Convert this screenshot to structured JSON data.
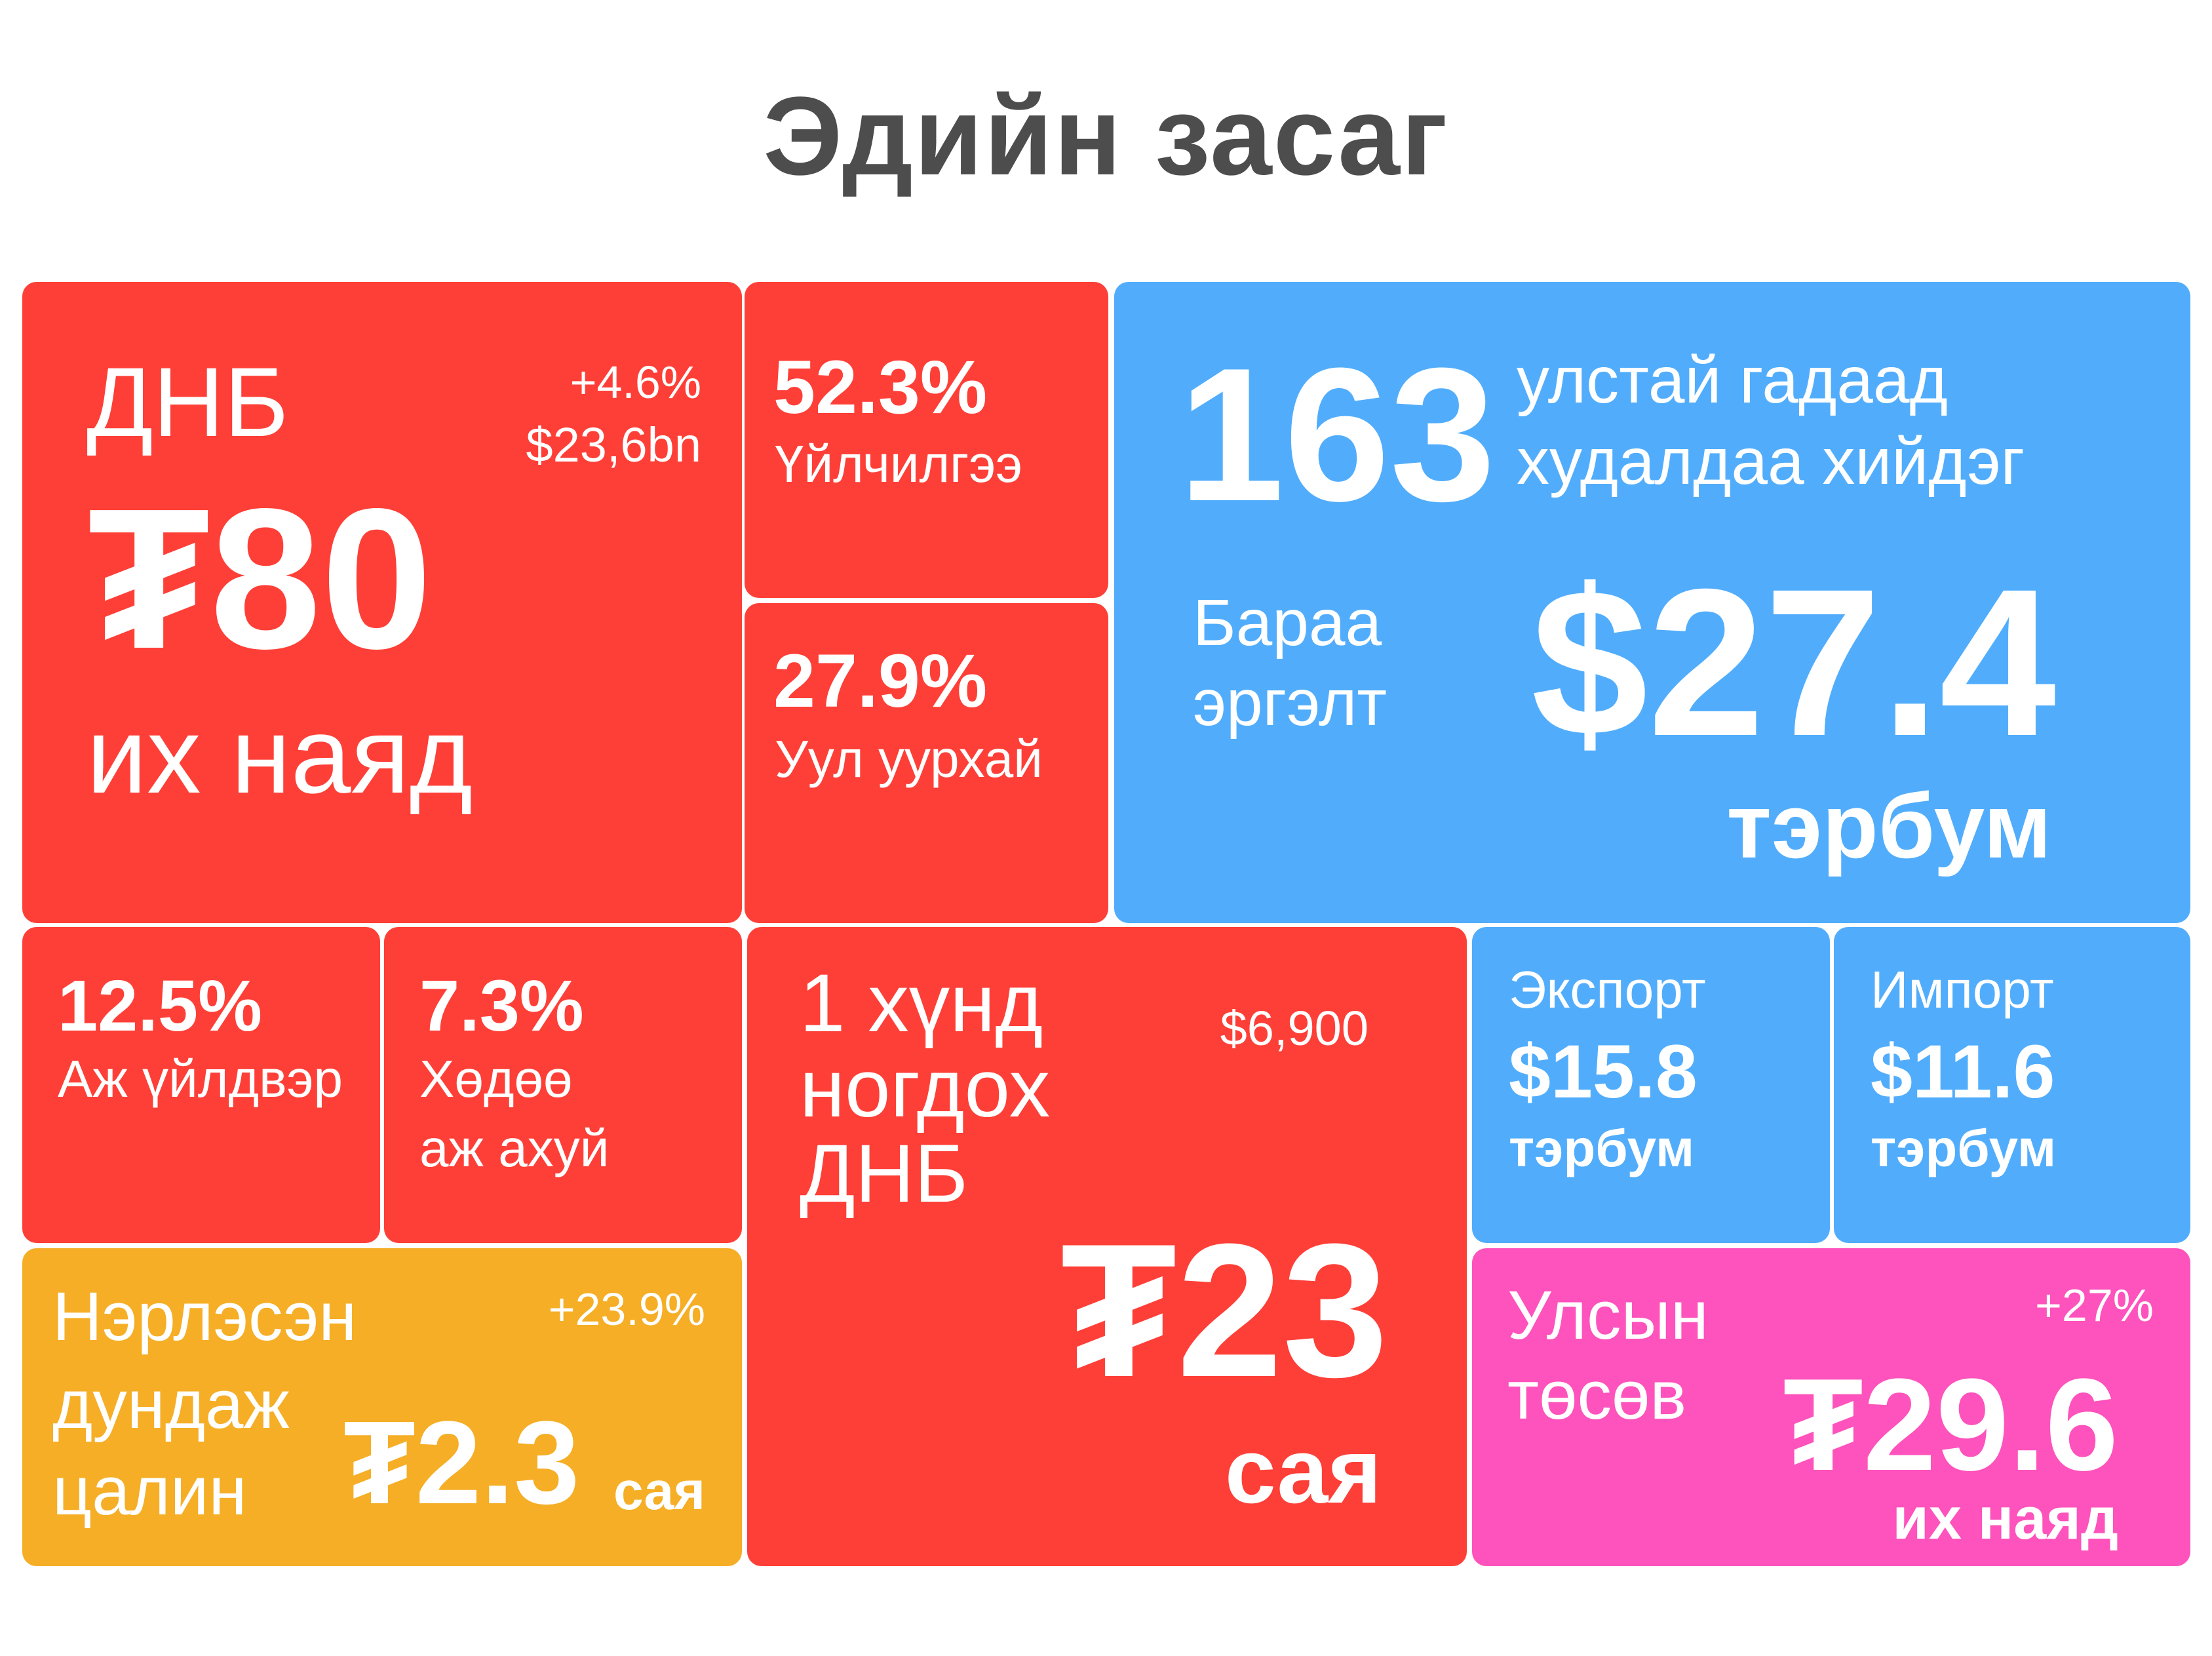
{
  "title": "Эдийн засаг",
  "colors": {
    "red": "#fe3f37",
    "blue": "#51adfc",
    "orange": "#f5ae25",
    "pink": "#fe52bc",
    "title": "#4d4d4d"
  },
  "gdp": {
    "label": "ДНБ",
    "growth": "+4.6%",
    "usd": "$23,6bn",
    "value": "₮80",
    "unit": "их наяд"
  },
  "services": {
    "pct": "52.3%",
    "label": "Үйлчилгээ"
  },
  "mining": {
    "pct": "27.9%",
    "label": "Уул уурхай"
  },
  "trade": {
    "countries": "163",
    "countries_line1": "улстай гадаад",
    "countries_line2": "худалдаа хийдэг",
    "turnover_line1": "Бараа",
    "turnover_line2": "эргэлт",
    "value": "$27.4",
    "unit": "тэрбум"
  },
  "industry": {
    "pct": "12.5%",
    "label": "Аж үйлдвэр"
  },
  "agriculture": {
    "pct": "7.3%",
    "label_line1": "Хөдөө",
    "label_line2": "аж ахуй"
  },
  "per_capita": {
    "line1": "1 хүнд",
    "line2": "ногдох",
    "line3": "ДНБ",
    "usd": "$6,900",
    "value": "₮23",
    "unit": "сая"
  },
  "export": {
    "label": "Экспорт",
    "value": "$15.8",
    "unit": "тэрбум"
  },
  "import": {
    "label": "Импорт",
    "value": "$11.6",
    "unit": "тэрбум"
  },
  "salary": {
    "line1": "Нэрлэсэн",
    "line2": "дундаж",
    "line3": "цалин",
    "growth": "+23.9%",
    "value": "₮2.3",
    "unit": "сая"
  },
  "budget": {
    "line1": "Улсын",
    "line2": "төсөв",
    "growth": "+27%",
    "value": "₮29.6",
    "unit": "их наяд"
  }
}
